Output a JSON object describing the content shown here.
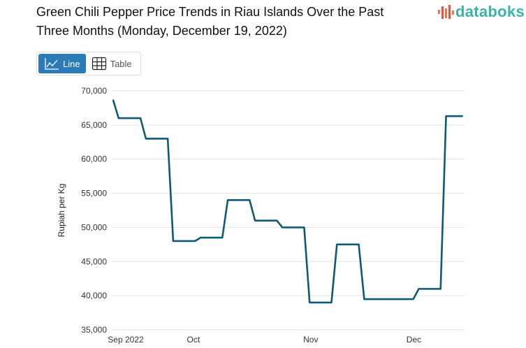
{
  "header": {
    "title": "Green Chili Pepper Price Trends in Riau Islands Over the Past Three Months (Monday, December 19, 2022)",
    "logo": "databoks"
  },
  "view_toggle": {
    "line_label": "Line",
    "table_label": "Table",
    "active": "Line"
  },
  "colors": {
    "line": "#0e5a73",
    "active_button": "#2b7bb9",
    "logo": "#3bb3a8",
    "grid": "#e3e3e3"
  },
  "chart_data": {
    "type": "line",
    "title": "",
    "xlabel": "",
    "ylabel": "Rupiah per Kg",
    "ylim": [
      35000,
      70000
    ],
    "yticks": [
      35000,
      40000,
      45000,
      50000,
      55000,
      60000,
      65000,
      70000
    ],
    "ytick_labels": [
      "35,000",
      "40,000",
      "45,000",
      "50,000",
      "55,000",
      "60,000",
      "65,000",
      "70,000"
    ],
    "xticks": [
      {
        "label": "Sep 2022",
        "x": 0
      },
      {
        "label": "Oct",
        "x": 14.7
      },
      {
        "label": "Nov",
        "x": 36.2
      },
      {
        "label": "Dec",
        "x": 55.1
      }
    ],
    "grid": true,
    "series": [
      {
        "x": [
          0,
          1,
          5,
          6,
          10,
          11,
          15,
          16,
          20,
          21,
          25,
          26,
          30,
          31,
          35,
          36,
          40,
          41,
          45,
          46,
          55,
          56,
          60,
          61,
          64
        ],
        "values": [
          68650,
          66000,
          66000,
          63000,
          63000,
          48000,
          48000,
          48500,
          48500,
          54000,
          54000,
          51000,
          51000,
          50000,
          50000,
          39000,
          39000,
          47500,
          47500,
          39500,
          39500,
          41000,
          41000,
          66300,
          66300
        ]
      }
    ]
  }
}
